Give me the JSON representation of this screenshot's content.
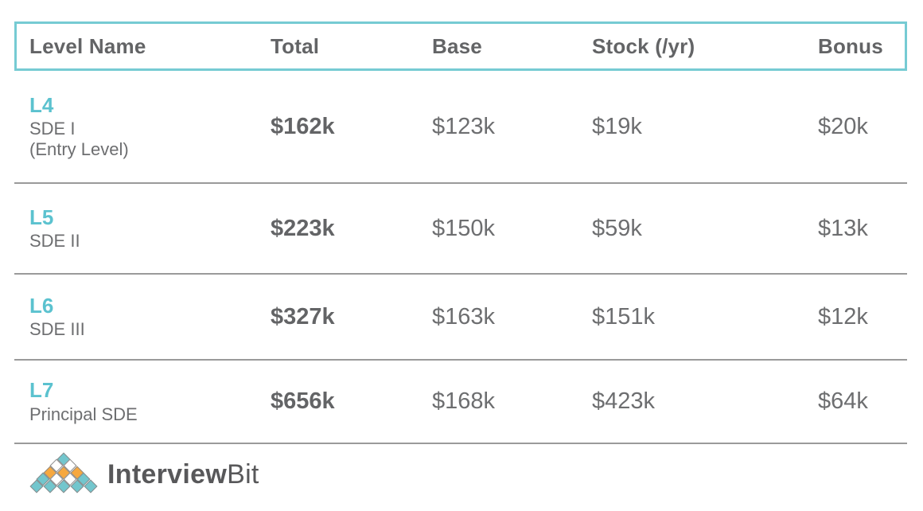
{
  "table": {
    "columns": [
      {
        "label": "Level Name"
      },
      {
        "label": "Total"
      },
      {
        "label": "Base"
      },
      {
        "label": "Stock (/yr)"
      },
      {
        "label": "Bonus"
      }
    ],
    "rows": [
      {
        "level": "L4",
        "title": "SDE I",
        "subtitle": "(Entry Level)",
        "total": "$162k",
        "base": "$123k",
        "stock": "$19k",
        "bonus": "$20k"
      },
      {
        "level": "L5",
        "title": "SDE II",
        "subtitle": "",
        "total": "$223k",
        "base": "$150k",
        "stock": "$59k",
        "bonus": "$13k"
      },
      {
        "level": "L6",
        "title": "SDE III",
        "subtitle": "",
        "total": "$327k",
        "base": "$163k",
        "stock": "$151k",
        "bonus": "$12k"
      },
      {
        "level": "L7",
        "title": "Principal SDE",
        "subtitle": "",
        "total": "$656k",
        "base": "$168k",
        "stock": "$423k",
        "bonus": "$64k"
      }
    ]
  },
  "chart_data": {
    "type": "table",
    "title": "",
    "columns": [
      "Level Name",
      "Total",
      "Base",
      "Stock (/yr)",
      "Bonus"
    ],
    "rows": [
      [
        "L4 SDE I (Entry Level)",
        "$162k",
        "$123k",
        "$19k",
        "$20k"
      ],
      [
        "L5 SDE II",
        "$223k",
        "$150k",
        "$59k",
        "$13k"
      ],
      [
        "L6 SDE III",
        "$327k",
        "$163k",
        "$151k",
        "$12k"
      ],
      [
        "L7 Principal SDE",
        "$656k",
        "$168k",
        "$423k",
        "$64k"
      ]
    ]
  },
  "logo": {
    "brand_bold": "Interview",
    "brand_light": "Bit",
    "diamond_rows": [
      [
        "teal"
      ],
      [
        "white",
        "white"
      ],
      [
        "orange",
        "orange",
        "orange"
      ],
      [
        "teal",
        "white",
        "white",
        "teal"
      ],
      [
        "teal",
        "teal",
        "teal",
        "teal",
        "teal"
      ]
    ],
    "colors": {
      "teal": "#72c6cd",
      "orange": "#f6a83f",
      "white": "#ffffff",
      "outline": "#8b8b8b"
    }
  },
  "colors": {
    "header_border": "#76cbd3",
    "level_accent": "#5bc2cf",
    "text_dark": "#636466",
    "text_gray": "#6d6e70",
    "separator": "#9a9a9a"
  }
}
